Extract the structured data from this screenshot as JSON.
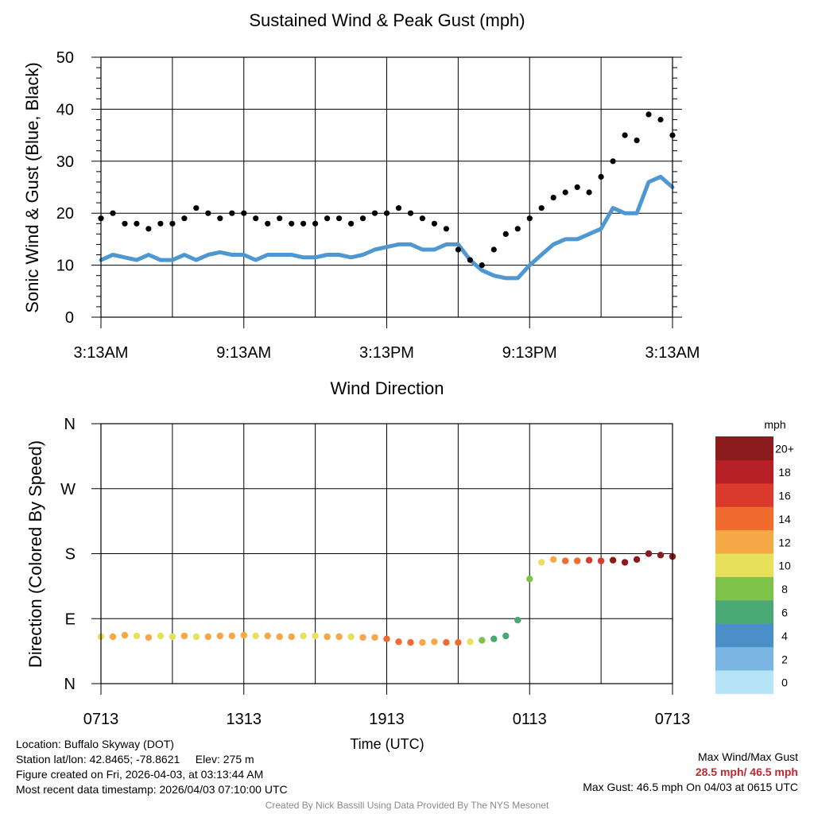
{
  "chart_data": [
    {
      "type": "line+scatter",
      "title": "Sustained Wind & Peak Gust (mph)",
      "ylabel": "Sonic Wind & Gust (Blue, Black)",
      "ylim": [
        0,
        50
      ],
      "yticks": [
        0,
        10,
        20,
        30,
        40,
        50
      ],
      "x_tick_labels": [
        "3:13AM",
        "9:13AM",
        "3:13PM",
        "9:13PM",
        "3:13AM"
      ],
      "xlim_hours": [
        0,
        24
      ],
      "grid": true,
      "series": [
        {
          "name": "Sonic Wind",
          "style": "line",
          "color": "#4d97d2",
          "x_hours": [
            0,
            0.5,
            1,
            1.5,
            2,
            2.5,
            3,
            3.5,
            4,
            4.5,
            5,
            5.5,
            6,
            6.5,
            7,
            7.5,
            8,
            8.5,
            9,
            9.5,
            10,
            10.5,
            11,
            11.5,
            12,
            12.5,
            13,
            13.5,
            14,
            14.5,
            15,
            15.5,
            16,
            16.5,
            17,
            17.5,
            18,
            18.5,
            19,
            19.5,
            20,
            20.5,
            21,
            21.5,
            22,
            22.5,
            23,
            23.5,
            24
          ],
          "values": [
            11,
            12,
            11.5,
            11,
            12,
            11,
            11,
            12,
            11,
            12,
            12.5,
            12,
            12,
            11,
            12,
            12,
            12,
            11.5,
            11.5,
            12,
            12,
            11.5,
            12,
            13,
            13.5,
            14,
            14,
            13,
            13,
            14,
            14,
            11,
            9,
            8,
            7.5,
            7.5,
            10,
            12,
            14,
            15,
            15,
            16,
            17,
            21,
            20,
            20,
            26,
            27,
            25
          ]
        },
        {
          "name": "Peak Gust",
          "style": "scatter",
          "color": "#000000",
          "x_hours": [
            0,
            0.5,
            1,
            1.5,
            2,
            2.5,
            3,
            3.5,
            4,
            4.5,
            5,
            5.5,
            6,
            6.5,
            7,
            7.5,
            8,
            8.5,
            9,
            9.5,
            10,
            10.5,
            11,
            11.5,
            12,
            12.5,
            13,
            13.5,
            14,
            14.5,
            15,
            15.5,
            16,
            16.5,
            17,
            17.5,
            18,
            18.5,
            19,
            19.5,
            20,
            20.5,
            21,
            21.5,
            22,
            22.5,
            23,
            23.5,
            24
          ],
          "values": [
            19,
            20,
            18,
            18,
            17,
            18,
            18,
            19,
            21,
            20,
            19,
            20,
            20,
            19,
            18,
            19,
            18,
            18,
            18,
            19,
            19,
            18,
            19,
            20,
            20,
            21,
            20,
            19,
            18,
            17,
            13,
            11,
            10,
            13,
            16,
            17,
            19,
            21,
            23,
            24,
            25,
            24,
            27,
            30,
            35,
            34,
            39,
            38,
            35
          ]
        }
      ]
    },
    {
      "type": "scatter",
      "title": "Wind Direction",
      "ylabel": "Direction (Colored By Speed)",
      "xlabel": "Time (UTC)",
      "y_tick_labels": [
        "N",
        "E",
        "S",
        "W",
        "N"
      ],
      "ylim_deg": [
        0,
        360
      ],
      "x_tick_labels": [
        "0713",
        "1313",
        "1913",
        "0113",
        "0713"
      ],
      "xlim_hours": [
        0,
        24
      ],
      "grid": true,
      "x_hours": [
        0,
        0.5,
        1,
        1.5,
        2,
        2.5,
        3,
        3.5,
        4,
        4.5,
        5,
        5.5,
        6,
        6.5,
        7,
        7.5,
        8,
        8.5,
        9,
        9.5,
        10,
        10.5,
        11,
        11.5,
        12,
        12.5,
        13,
        13.5,
        14,
        14.5,
        15,
        15.5,
        16,
        16.5,
        17,
        17.5,
        18,
        18.5,
        19,
        19.5,
        20,
        20.5,
        21,
        21.5,
        22,
        22.5,
        23,
        23.5,
        24
      ],
      "direction_deg": [
        65,
        65,
        67,
        66,
        64,
        66,
        65,
        66,
        65,
        65,
        66,
        66,
        67,
        66,
        66,
        65,
        65,
        66,
        66,
        65,
        65,
        65,
        64,
        64,
        62,
        58,
        57,
        57,
        58,
        57,
        57,
        58,
        60,
        62,
        66,
        88,
        145,
        168,
        172,
        170,
        170,
        171,
        170,
        171,
        168,
        172,
        180,
        178,
        176
      ],
      "speed_mph": [
        11,
        12,
        12,
        11,
        12,
        11,
        11,
        12,
        11,
        12,
        13,
        12,
        12,
        11,
        12,
        12,
        12,
        11,
        11,
        12,
        12,
        11,
        12,
        13,
        14,
        14,
        14,
        13,
        13,
        14,
        14,
        11,
        8,
        7,
        6,
        6,
        8,
        10,
        13,
        15,
        15,
        16,
        17,
        21,
        20,
        20,
        26,
        27,
        25
      ],
      "colorbar": {
        "unit": "mph",
        "labels": [
          "0",
          "2",
          "4",
          "6",
          "8",
          "10",
          "12",
          "14",
          "16",
          "18",
          "20+"
        ],
        "colors": [
          "#b7e3f7",
          "#7ab5e3",
          "#4b8fc8",
          "#4aa875",
          "#7ec24a",
          "#e6e05a",
          "#f6a846",
          "#ef6c2e",
          "#d93a2b",
          "#b71f26",
          "#8c1b1e"
        ]
      }
    }
  ],
  "info": {
    "location": "Location: Buffalo Skyway (DOT)",
    "latlon": "Station lat/lon: 42.8465; -78.8621",
    "elev": "Elev: 275 m",
    "created": "Figure created on Fri, 2026-04-03, at 03:13:44 AM",
    "recent": "Most recent data timestamp: 2026/04/03 07:10:00 UTC",
    "max_label": "Max Wind/Max Gust",
    "max_values": "28.5 mph/ 46.5 mph",
    "max_gust": "Max Gust: 46.5 mph On 04/03 at 0615 UTC",
    "credit": "Created By Nick Bassill Using Data Provided By The NYS Mesonet"
  }
}
